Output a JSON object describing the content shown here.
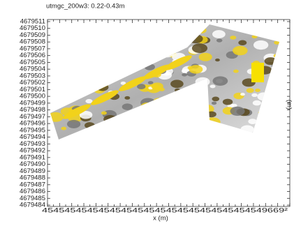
{
  "chart_data": {
    "type": "raster-map",
    "title": "utmgc_200w3: 0.22-0.43m",
    "x_label": "x (m)",
    "x_tick_text": "4545454545454545454545454545454545454549669²",
    "right_label": "(m)",
    "ylim": [
      4679483.8,
      4679511.3
    ],
    "yticks": [
      4679484,
      4679485,
      4679486,
      4679487,
      4679488,
      4679489,
      4679490,
      4679491,
      4679492,
      4679493,
      4679494,
      4679495,
      4679496,
      4679497,
      4679498,
      4679499,
      4679500,
      4679501,
      4679502,
      4679503,
      4679504,
      4679505,
      4679506,
      4679507,
      4679508,
      4679509,
      4679510,
      4679511
    ]
  }
}
